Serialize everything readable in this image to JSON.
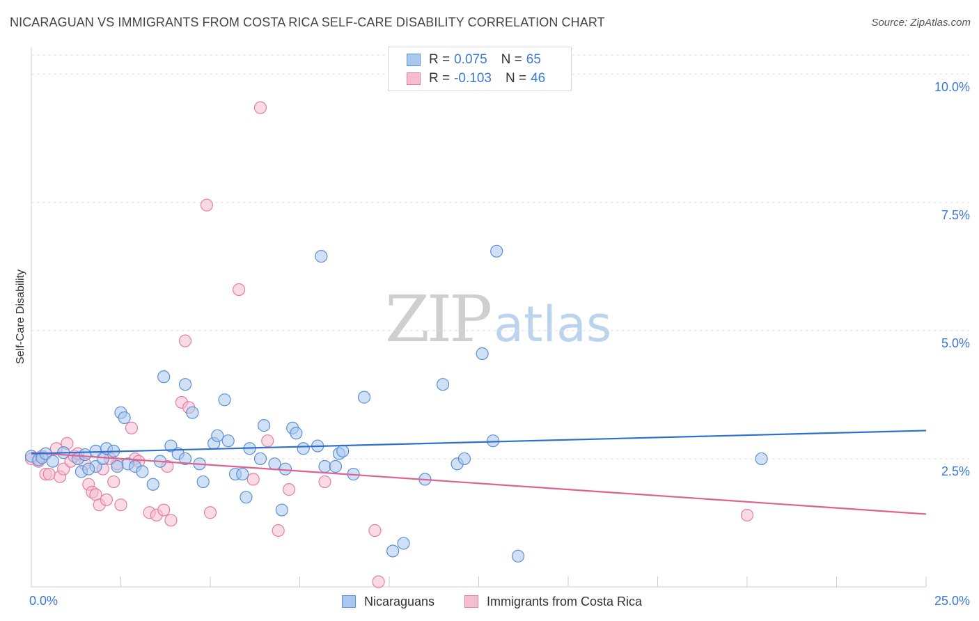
{
  "title": "NICARAGUAN VS IMMIGRANTS FROM COSTA RICA SELF-CARE DISABILITY CORRELATION CHART",
  "source": "Source: ZipAtlas.com",
  "watermark": {
    "zip": "ZIP",
    "atlas": "atlas"
  },
  "colors": {
    "blue_fill": "#a9c8ef",
    "blue_stroke": "#5b8fd6",
    "blue_line": "#2f6fcf",
    "pink_fill": "#f6bcd0",
    "pink_stroke": "#e47ea3",
    "pink_line": "#e0608f",
    "tick_label": "#3a78d2",
    "grid": "#dddddd"
  },
  "legend": {
    "rows": [
      {
        "r_label": "R =",
        "r_value": "0.075",
        "n_label": "N =",
        "n_value": "65"
      },
      {
        "r_label": "R =",
        "r_value": "-0.103",
        "n_label": "N =",
        "n_value": "46"
      }
    ]
  },
  "bottom_legend": [
    "Nicaraguans",
    "Immigrants from Costa Rica"
  ],
  "chart_data": {
    "type": "scatter",
    "title": "NICARAGUAN VS IMMIGRANTS FROM COSTA RICA SELF-CARE DISABILITY CORRELATION CHART",
    "xlabel": "",
    "ylabel": "Self-Care Disability",
    "xlim": [
      0,
      25
    ],
    "ylim": [
      0,
      10.5
    ],
    "x_tick_labels": [
      "0.0%",
      "25.0%"
    ],
    "y_ticks": [
      2.5,
      5.0,
      7.5,
      10.0
    ],
    "y_tick_labels": [
      "2.5%",
      "5.0%",
      "7.5%",
      "10.0%"
    ],
    "grid": "horizontal dashed",
    "legend_position": "top-center",
    "series": [
      {
        "name": "Nicaraguans",
        "trend": {
          "x": [
            0,
            25
          ],
          "y": [
            2.6,
            3.05
          ]
        },
        "points": [
          [
            0.0,
            2.55
          ],
          [
            0.2,
            2.48
          ],
          [
            0.3,
            2.52
          ],
          [
            0.4,
            2.6
          ],
          [
            0.6,
            2.45
          ],
          [
            0.9,
            2.62
          ],
          [
            1.3,
            2.5
          ],
          [
            1.5,
            2.58
          ],
          [
            1.8,
            2.35
          ],
          [
            1.4,
            2.25
          ],
          [
            1.6,
            2.3
          ],
          [
            1.8,
            2.65
          ],
          [
            2.0,
            2.5
          ],
          [
            2.1,
            2.7
          ],
          [
            2.3,
            2.65
          ],
          [
            2.4,
            2.35
          ],
          [
            2.5,
            3.4
          ],
          [
            2.6,
            3.3
          ],
          [
            2.7,
            2.4
          ],
          [
            2.9,
            2.35
          ],
          [
            3.1,
            2.25
          ],
          [
            3.4,
            2.0
          ],
          [
            3.6,
            2.45
          ],
          [
            3.7,
            4.1
          ],
          [
            3.9,
            2.75
          ],
          [
            4.1,
            2.6
          ],
          [
            4.3,
            2.5
          ],
          [
            4.3,
            3.95
          ],
          [
            4.5,
            3.4
          ],
          [
            4.7,
            2.4
          ],
          [
            4.8,
            2.05
          ],
          [
            5.1,
            2.8
          ],
          [
            5.2,
            2.95
          ],
          [
            5.4,
            3.65
          ],
          [
            5.5,
            2.85
          ],
          [
            5.7,
            2.2
          ],
          [
            5.9,
            2.2
          ],
          [
            6.0,
            1.75
          ],
          [
            6.1,
            2.7
          ],
          [
            6.4,
            2.5
          ],
          [
            6.5,
            3.15
          ],
          [
            6.8,
            2.4
          ],
          [
            7.0,
            1.5
          ],
          [
            7.1,
            2.3
          ],
          [
            7.3,
            3.1
          ],
          [
            7.4,
            3.0
          ],
          [
            7.6,
            2.7
          ],
          [
            8.0,
            2.75
          ],
          [
            8.1,
            6.45
          ],
          [
            8.2,
            2.35
          ],
          [
            8.5,
            2.35
          ],
          [
            8.6,
            2.6
          ],
          [
            8.7,
            2.65
          ],
          [
            9.0,
            2.2
          ],
          [
            9.3,
            3.7
          ],
          [
            10.1,
            0.7
          ],
          [
            10.4,
            0.85
          ],
          [
            11.0,
            2.1
          ],
          [
            11.5,
            3.95
          ],
          [
            11.9,
            2.4
          ],
          [
            12.1,
            2.5
          ],
          [
            12.6,
            4.55
          ],
          [
            12.9,
            2.85
          ],
          [
            13.0,
            6.55
          ],
          [
            13.6,
            0.6
          ],
          [
            20.4,
            2.5
          ]
        ]
      },
      {
        "name": "Immigrants from Costa Rica",
        "trend": {
          "x": [
            0,
            25
          ],
          "y": [
            2.62,
            1.42
          ]
        },
        "points": [
          [
            0.0,
            2.5
          ],
          [
            0.2,
            2.45
          ],
          [
            0.3,
            2.55
          ],
          [
            0.4,
            2.2
          ],
          [
            0.5,
            2.2
          ],
          [
            0.7,
            2.7
          ],
          [
            0.8,
            2.15
          ],
          [
            0.9,
            2.3
          ],
          [
            1.0,
            2.8
          ],
          [
            1.1,
            2.45
          ],
          [
            1.2,
            2.55
          ],
          [
            1.5,
            2.4
          ],
          [
            1.6,
            2.0
          ],
          [
            1.7,
            1.85
          ],
          [
            1.8,
            1.8
          ],
          [
            1.9,
            1.6
          ],
          [
            2.0,
            2.3
          ],
          [
            2.1,
            1.7
          ],
          [
            2.3,
            2.05
          ],
          [
            2.4,
            2.4
          ],
          [
            2.5,
            1.6
          ],
          [
            2.8,
            3.1
          ],
          [
            2.9,
            2.5
          ],
          [
            3.0,
            2.45
          ],
          [
            3.3,
            1.45
          ],
          [
            3.5,
            1.4
          ],
          [
            3.7,
            1.5
          ],
          [
            3.8,
            2.35
          ],
          [
            3.9,
            1.3
          ],
          [
            4.2,
            3.6
          ],
          [
            4.3,
            4.8
          ],
          [
            4.4,
            3.5
          ],
          [
            4.9,
            7.45
          ],
          [
            5.0,
            1.45
          ],
          [
            5.8,
            5.8
          ],
          [
            6.2,
            2.1
          ],
          [
            6.4,
            9.35
          ],
          [
            6.6,
            2.85
          ],
          [
            6.9,
            1.1
          ],
          [
            7.2,
            1.9
          ],
          [
            8.2,
            2.05
          ],
          [
            9.6,
            1.1
          ],
          [
            9.7,
            0.1
          ],
          [
            20.0,
            1.4
          ],
          [
            2.2,
            2.5
          ],
          [
            1.3,
            2.6
          ]
        ]
      }
    ]
  }
}
